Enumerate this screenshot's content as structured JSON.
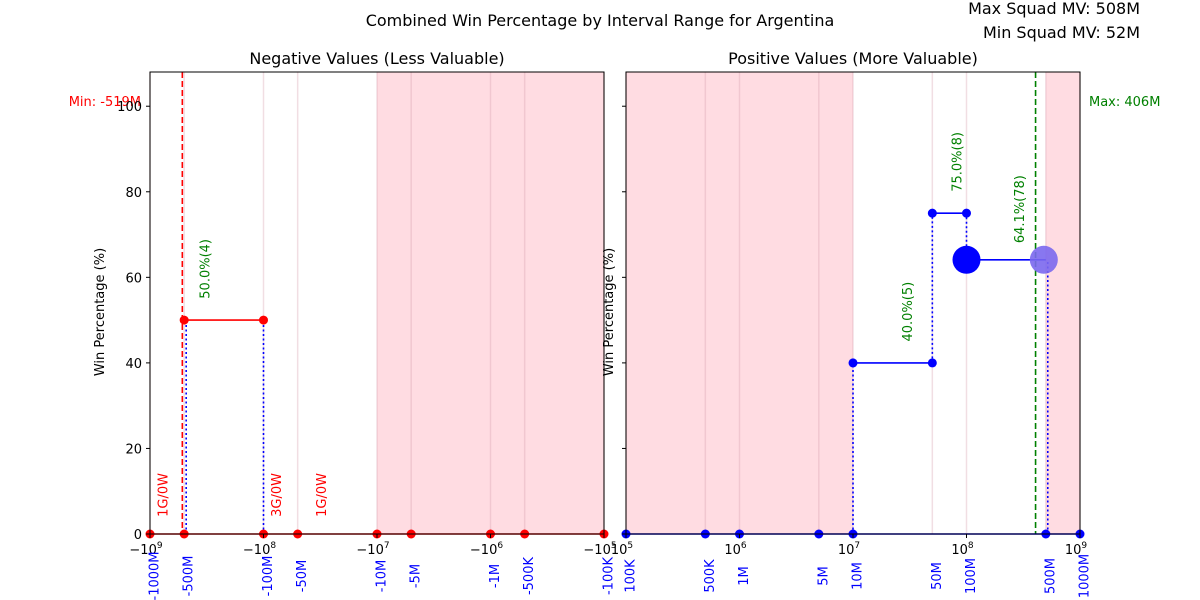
{
  "figure": {
    "title": "Combined Win Percentage by Interval Range for Argentina",
    "corner_lines": [
      "Max Squad MV: 508M",
      "Min Squad MV: 52M"
    ],
    "ylabel": "Win Percentage (%)",
    "yticks": [
      0,
      20,
      40,
      60,
      80,
      100
    ]
  },
  "colors": {
    "negative_series": "#ff0000",
    "positive_series": "#0000ff",
    "connector": "#0000ff",
    "annotation": "#008000",
    "shade": "#ffc0cb",
    "bubble_highlight": "#7b68ee"
  },
  "chart_data": [
    {
      "type": "line",
      "title": "Negative Values (Less Valuable)",
      "x_scale": "symlog-negative",
      "xlim_magnitude_log10": [
        9,
        5
      ],
      "ylim": [
        0,
        108
      ],
      "major_ticks": [
        {
          "log10": 9,
          "label": "−10^9"
        },
        {
          "log10": 8,
          "label": "−10^8"
        },
        {
          "log10": 7,
          "label": "−10^7"
        },
        {
          "log10": 6,
          "label": "−10^6"
        },
        {
          "log10": 5,
          "label": "−10^5"
        }
      ],
      "interval_ticks": [
        {
          "value": -1000000000,
          "label": "-1000M"
        },
        {
          "value": -500000000,
          "label": "-500M"
        },
        {
          "value": -100000000,
          "label": "-100M"
        },
        {
          "value": -50000000,
          "label": "-50M"
        },
        {
          "value": -10000000,
          "label": "-10M"
        },
        {
          "value": -5000000,
          "label": "-5M"
        },
        {
          "value": -1000000,
          "label": "-1M"
        },
        {
          "value": -500000,
          "label": "-500K"
        },
        {
          "value": -100000,
          "label": "-100K"
        }
      ],
      "shaded_range": [
        -10000000,
        -100000
      ],
      "boundary_line": {
        "value": -519000000,
        "label": "Min: -519M"
      },
      "points": [
        {
          "x": -1000000000,
          "y": 0
        },
        {
          "x": -500000000,
          "y": 0
        },
        {
          "x": -500000000,
          "y": 50
        },
        {
          "x": -100000000,
          "y": 50
        },
        {
          "x": -100000000,
          "y": 0
        },
        {
          "x": -50000000,
          "y": 0
        },
        {
          "x": -10000000,
          "y": 0
        },
        {
          "x": -5000000,
          "y": 0
        },
        {
          "x": -1000000,
          "y": 0
        },
        {
          "x": -500000,
          "y": 0
        },
        {
          "x": -100000,
          "y": 0
        }
      ],
      "segments": [
        {
          "x0": -500000000,
          "x1": -100000000,
          "y": 50
        }
      ],
      "connectors": [
        {
          "x": -480000000,
          "y0": 0,
          "y1": 50
        },
        {
          "x": -100000000,
          "y0": 0,
          "y1": 50
        }
      ],
      "annotations": [
        {
          "x": -300000000,
          "y": 55,
          "text": "50.0%(4)",
          "color": "green"
        },
        {
          "x": -700000000,
          "y": 4,
          "text": "1G/0W",
          "color": "red"
        },
        {
          "x": -70000000,
          "y": 4,
          "text": "3G/0W",
          "color": "red"
        },
        {
          "x": -28000000,
          "y": 4,
          "text": "1G/0W",
          "color": "red"
        }
      ]
    },
    {
      "type": "line",
      "title": "Positive Values (More Valuable)",
      "x_scale": "log",
      "xlim_log10": [
        5,
        9
      ],
      "ylim": [
        0,
        108
      ],
      "major_ticks": [
        {
          "log10": 5,
          "label": "10^5"
        },
        {
          "log10": 6,
          "label": "10^6"
        },
        {
          "log10": 7,
          "label": "10^7"
        },
        {
          "log10": 8,
          "label": "10^8"
        },
        {
          "log10": 9,
          "label": "10^9"
        }
      ],
      "interval_ticks": [
        {
          "value": 100000,
          "label": "100K"
        },
        {
          "value": 500000,
          "label": "500K"
        },
        {
          "value": 1000000,
          "label": "1M"
        },
        {
          "value": 5000000,
          "label": "5M"
        },
        {
          "value": 10000000,
          "label": "10M"
        },
        {
          "value": 50000000,
          "label": "50M"
        },
        {
          "value": 100000000,
          "label": "100M"
        },
        {
          "value": 500000000,
          "label": "500M"
        },
        {
          "value": 1000000000,
          "label": "1000M"
        }
      ],
      "shaded_ranges": [
        [
          100000,
          10000000
        ],
        [
          500000000,
          1000000000
        ]
      ],
      "boundary_line": {
        "value": 406000000,
        "label": "Max: 406M"
      },
      "points": [
        {
          "x": 100000,
          "y": 0
        },
        {
          "x": 500000,
          "y": 0
        },
        {
          "x": 1000000,
          "y": 0
        },
        {
          "x": 5000000,
          "y": 0
        },
        {
          "x": 10000000,
          "y": 0
        },
        {
          "x": 10000000,
          "y": 40
        },
        {
          "x": 50000000,
          "y": 40
        },
        {
          "x": 50000000,
          "y": 75
        },
        {
          "x": 100000000,
          "y": 75
        },
        {
          "x": 500000000,
          "y": 0
        },
        {
          "x": 1000000000,
          "y": 0
        }
      ],
      "segments": [
        {
          "x0": 10000000,
          "x1": 50000000,
          "y": 40
        },
        {
          "x0": 50000000,
          "x1": 100000000,
          "y": 75
        },
        {
          "x0": 100000000,
          "x1": 500000000,
          "y": 64.1
        }
      ],
      "bubbles": [
        {
          "x": 100000000,
          "y": 64.1,
          "color": "blue"
        },
        {
          "x": 480000000,
          "y": 64.1,
          "color": "mediumslateblue"
        }
      ],
      "connectors": [
        {
          "x": 10000000,
          "y0": 0,
          "y1": 40
        },
        {
          "x": 50000000,
          "y0": 40,
          "y1": 75
        },
        {
          "x": 100000000,
          "y0": 64.1,
          "y1": 75
        },
        {
          "x": 520000000,
          "y0": 0,
          "y1": 64.1
        }
      ],
      "annotations": [
        {
          "x": 33000000,
          "y": 45,
          "text": "40.0%(5)",
          "color": "green"
        },
        {
          "x": 90000000,
          "y": 80,
          "text": "75.0%(8)",
          "color": "green"
        },
        {
          "x": 320000000,
          "y": 68,
          "text": "64.1%(78)",
          "color": "green"
        }
      ]
    }
  ]
}
